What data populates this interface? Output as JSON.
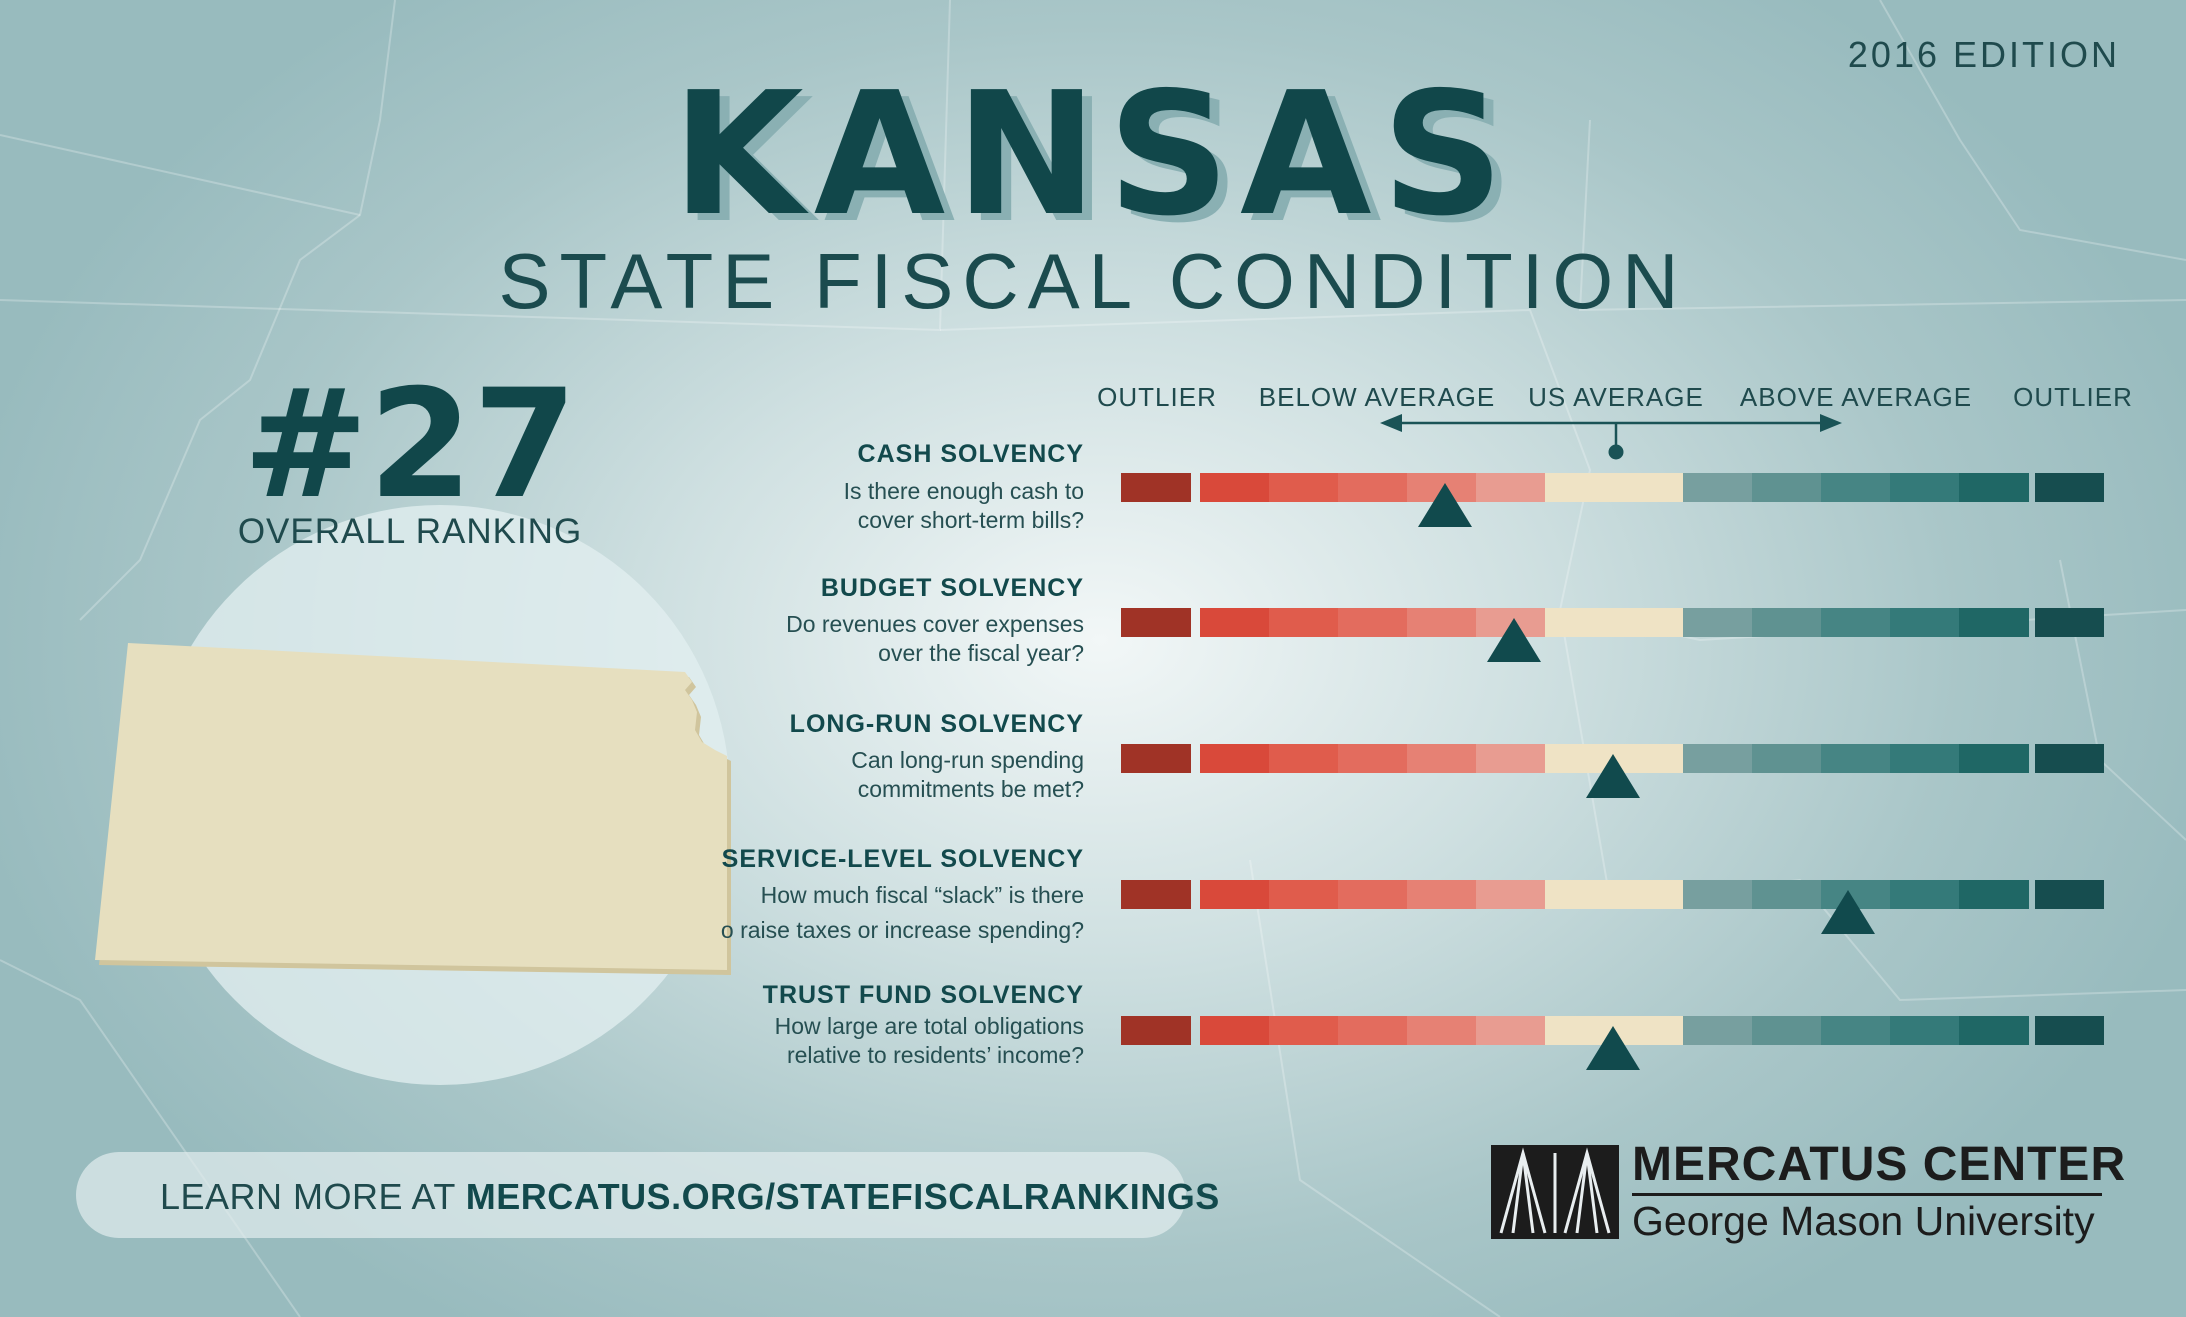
{
  "edition": "2016 EDITION",
  "title": "KANSAS",
  "subtitle": "STATE FISCAL CONDITION",
  "ranking": {
    "number": "#27",
    "label": "OVERALL RANKING"
  },
  "scale": {
    "labels": [
      "OUTLIER",
      "BELOW AVERAGE",
      "US AVERAGE",
      "ABOVE AVERAGE",
      "OUTLIER"
    ],
    "colors": [
      "#a03326",
      "#d9493a",
      "#e05c4c",
      "#e36c5e",
      "#e68174",
      "#e89c91",
      "#efe3c5",
      "#efe3c5",
      "#779f9f",
      "#5f9291",
      "#468584",
      "#347a79",
      "#1f6765",
      "#164d4f"
    ]
  },
  "metrics": [
    {
      "title": "CASH SOLVENCY",
      "question": [
        "Is there enough cash to",
        "cover short-term bills?"
      ],
      "position": 0.33
    },
    {
      "title": "BUDGET SOLVENCY",
      "question": [
        "Do revenues cover expenses",
        "over the fiscal year?"
      ],
      "position": 0.4
    },
    {
      "title": "LONG-RUN SOLVENCY",
      "question": [
        "Can long-run spending",
        "commitments be met?"
      ],
      "position": 0.5
    },
    {
      "title": "SERVICE-LEVEL SOLVENCY",
      "question": [
        "How much fiscal “slack” is there",
        "o raise taxes or increase spending?"
      ],
      "position": 0.74
    },
    {
      "title": "TRUST FUND SOLVENCY",
      "question": [
        "How large are total obligations",
        "relative to residents’ income?"
      ],
      "position": 0.5
    }
  ],
  "learn_more": {
    "prefix": "LEARN MORE AT ",
    "url": "MERCATUS.ORG/STATEFISCALRANKINGS"
  },
  "org": {
    "name": "MERCATUS CENTER",
    "university": "George Mason University"
  }
}
